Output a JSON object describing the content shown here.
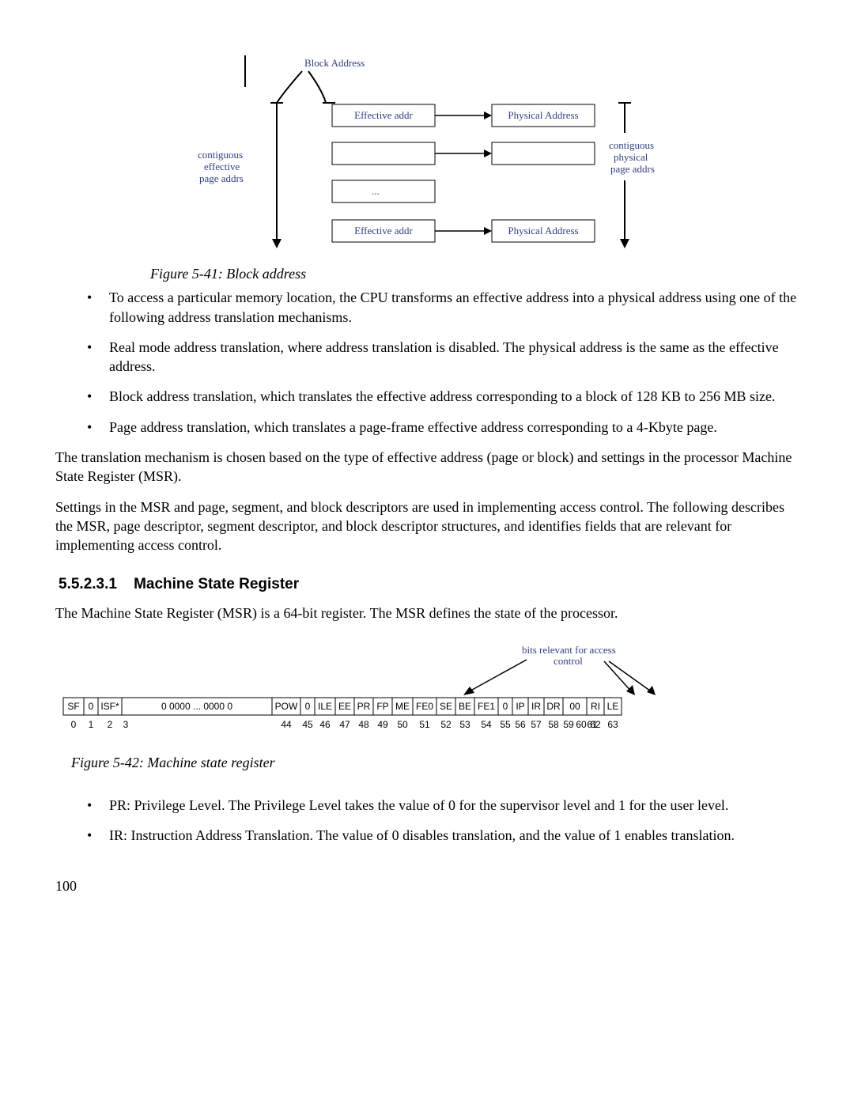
{
  "fig541": {
    "title": "Block Address",
    "leftLabel1": "contiguous",
    "leftLabel2": "effective",
    "leftLabel3": "page addrs",
    "rightLabel1": "contiguous",
    "rightLabel2": "physical",
    "rightLabel3": "page addrs",
    "box1": "Effective addr",
    "box2": "Effective addr",
    "box3": "Physical Address",
    "box4": "Physical Address",
    "dots": "...",
    "caption": "Figure 5-41: Block address"
  },
  "bulletsA": [
    "To access a particular memory location, the CPU transforms an effective address into a physical address using one of the following address translation mechanisms.",
    "Real mode address translation, where address translation is disabled.  The physical address is the same as the effective address.",
    "Block address translation, which translates the effective address corresponding to a block of 128 KB to 256 MB size.",
    "Page address translation, which translates a page-frame effective address corresponding to a 4-Kbyte page."
  ],
  "para1": "The translation mechanism is chosen based on the type of effective address (page or block) and settings in the processor Machine State Register (MSR).",
  "para2": "Settings in the MSR and page, segment, and block descriptors are used in implementing access control.  The following describes the MSR, page descriptor, segment descriptor, and block descriptor structures, and identifies fields that are relevant for implementing access control.",
  "section": {
    "num": "5.5.2.3.1",
    "title": "Machine State Register"
  },
  "para3": "The Machine State Register (MSR) is a 64-bit register. The MSR defines the state of the processor.",
  "fig542": {
    "annot1": "bits relevant for access",
    "annot2": "control",
    "cells": [
      "SF",
      "0",
      "ISF*",
      "0 0000  ...  0000 0",
      "POW",
      "0",
      "ILE",
      "EE",
      "PR",
      "FP",
      "ME",
      "FE0",
      "SE",
      "BE",
      "FE1",
      "0",
      "IP",
      "IR",
      "DR",
      "00",
      "RI",
      "LE"
    ],
    "nums": [
      "0",
      "1",
      "2",
      "3",
      "44",
      "45",
      "46",
      "47",
      "48",
      "49",
      "50",
      "51",
      "52",
      "53",
      "54",
      "55",
      "56",
      "57",
      "58",
      "59",
      "60",
      "61",
      "62",
      "63"
    ],
    "caption": "Figure 5-42: Machine state register"
  },
  "bulletsB": [
    "PR: Privilege Level.  The Privilege Level takes the value of 0 for the supervisor level and 1 for the user level.",
    "IR: Instruction Address Translation.  The value of 0 disables translation, and the value of 1 enables translation."
  ],
  "pageNumber": "100",
  "style": {
    "figBoxFill": "#ffffff",
    "figBoxStroke": "#000000",
    "textColor": "#000000"
  }
}
